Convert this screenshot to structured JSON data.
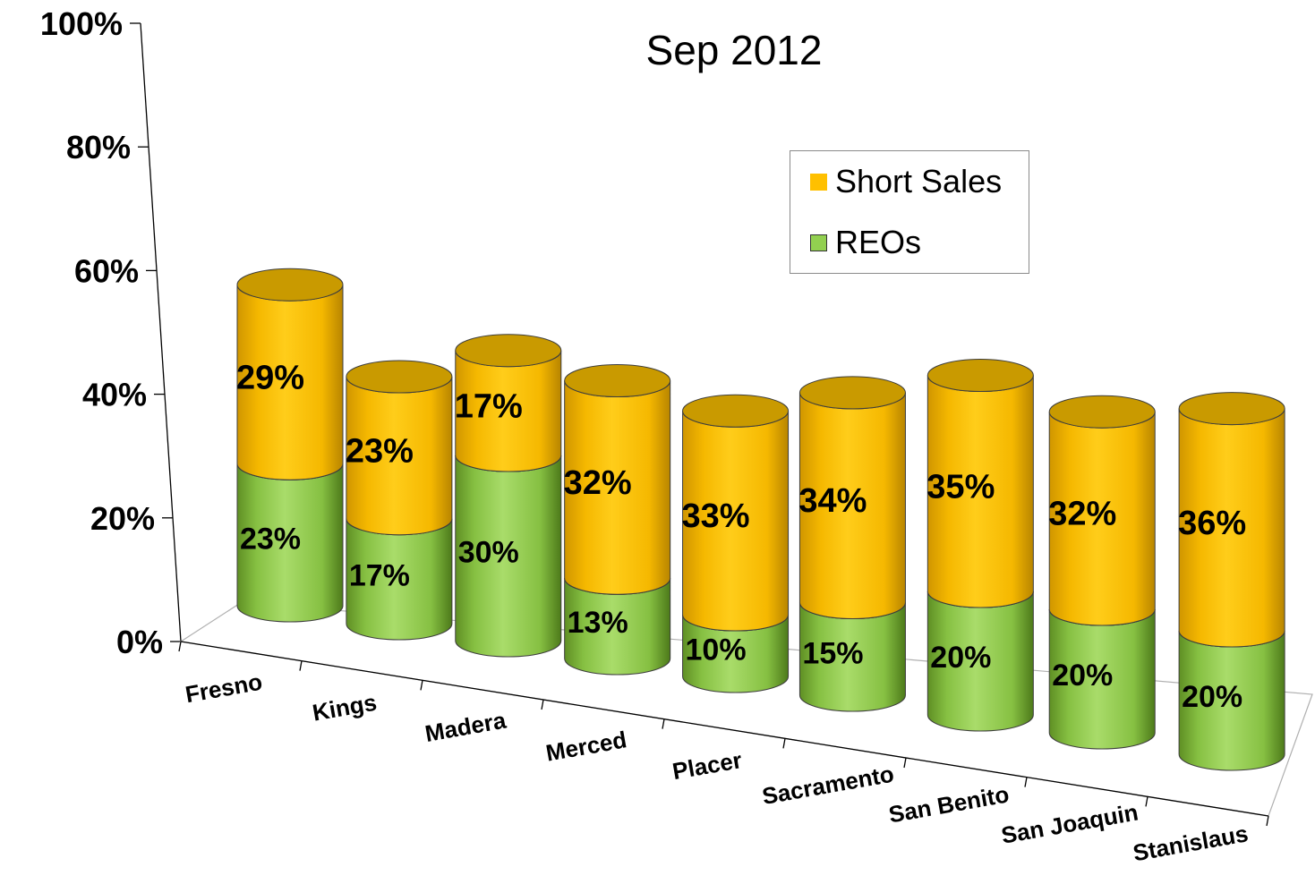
{
  "chart_data": {
    "type": "bar",
    "stacked": true,
    "style": "3d-cylinder",
    "title": "Sep 2012",
    "categories": [
      "Fresno",
      "Kings",
      "Madera",
      "Merced",
      "Placer",
      "Sacramento",
      "San Benito",
      "San Joaquin",
      "Stanislaus"
    ],
    "series": [
      {
        "name": "REOs",
        "color": "#92d050",
        "values": [
          23,
          17,
          30,
          13,
          10,
          15,
          20,
          20,
          20
        ],
        "labels": [
          "23%",
          "17%",
          "30%",
          "13%",
          "10%",
          "15%",
          "20%",
          "20%",
          "20%"
        ]
      },
      {
        "name": "Short Sales",
        "color": "#ffc000",
        "values": [
          29,
          23,
          17,
          32,
          33,
          34,
          35,
          32,
          36
        ],
        "labels": [
          "29%",
          "23%",
          "17%",
          "32%",
          "33%",
          "34%",
          "35%",
          "32%",
          "36%"
        ]
      }
    ],
    "y_ticks": [
      "0%",
      "20%",
      "40%",
      "60%",
      "80%",
      "100%"
    ],
    "ylim": [
      0,
      100
    ],
    "legend": {
      "position": "top-right",
      "order": [
        "Short Sales",
        "REOs"
      ]
    },
    "grid": false
  }
}
